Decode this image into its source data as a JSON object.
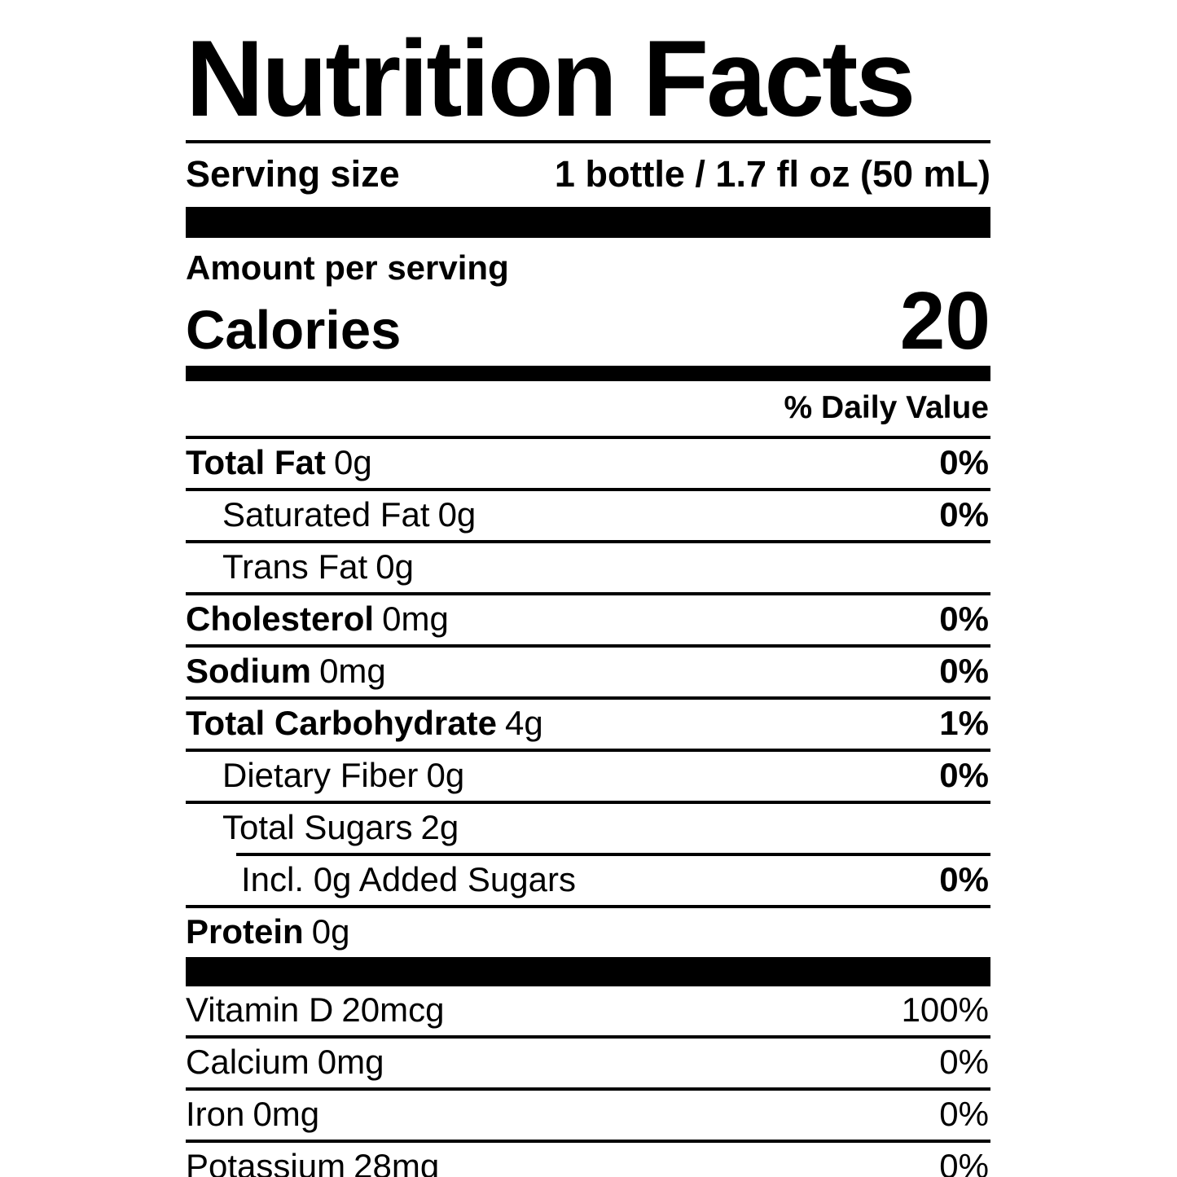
{
  "label": {
    "title": "Nutrition Facts",
    "serving": {
      "label": "Serving size",
      "value": "1 bottle / 1.7 fl oz (50 mL)"
    },
    "amount_per_serving": "Amount per serving",
    "calories": {
      "label": "Calories",
      "value": "20"
    },
    "daily_value_header": "% Daily Value",
    "nutrients": [
      {
        "name": "Total Fat",
        "amount": "0g",
        "dv": "0%"
      },
      {
        "name": "Saturated Fat",
        "amount": "0g",
        "dv": "0%"
      },
      {
        "name": "Trans Fat",
        "amount": "0g",
        "dv": ""
      },
      {
        "name": "Cholesterol",
        "amount": "0mg",
        "dv": "0%"
      },
      {
        "name": "Sodium",
        "amount": "0mg",
        "dv": "0%"
      },
      {
        "name": "Total Carbohydrate",
        "amount": "4g",
        "dv": "1%"
      },
      {
        "name": "Dietary Fiber",
        "amount": "0g",
        "dv": "0%"
      },
      {
        "name": "Total Sugars",
        "amount": "2g",
        "dv": ""
      },
      {
        "name": "Incl. 0g Added Sugars",
        "amount": "",
        "dv": "0%"
      },
      {
        "name": "Protein",
        "amount": "0g",
        "dv": ""
      }
    ],
    "vitamins": [
      {
        "name": "Vitamin D",
        "amount": "20mcg",
        "dv": "100%"
      },
      {
        "name": "Calcium",
        "amount": "0mg",
        "dv": "0%"
      },
      {
        "name": "Iron",
        "amount": "0mg",
        "dv": "0%"
      },
      {
        "name": "Potassium",
        "amount": "28mg",
        "dv": "0%"
      }
    ],
    "colors": {
      "text": "#000000",
      "background": "#ffffff"
    }
  }
}
